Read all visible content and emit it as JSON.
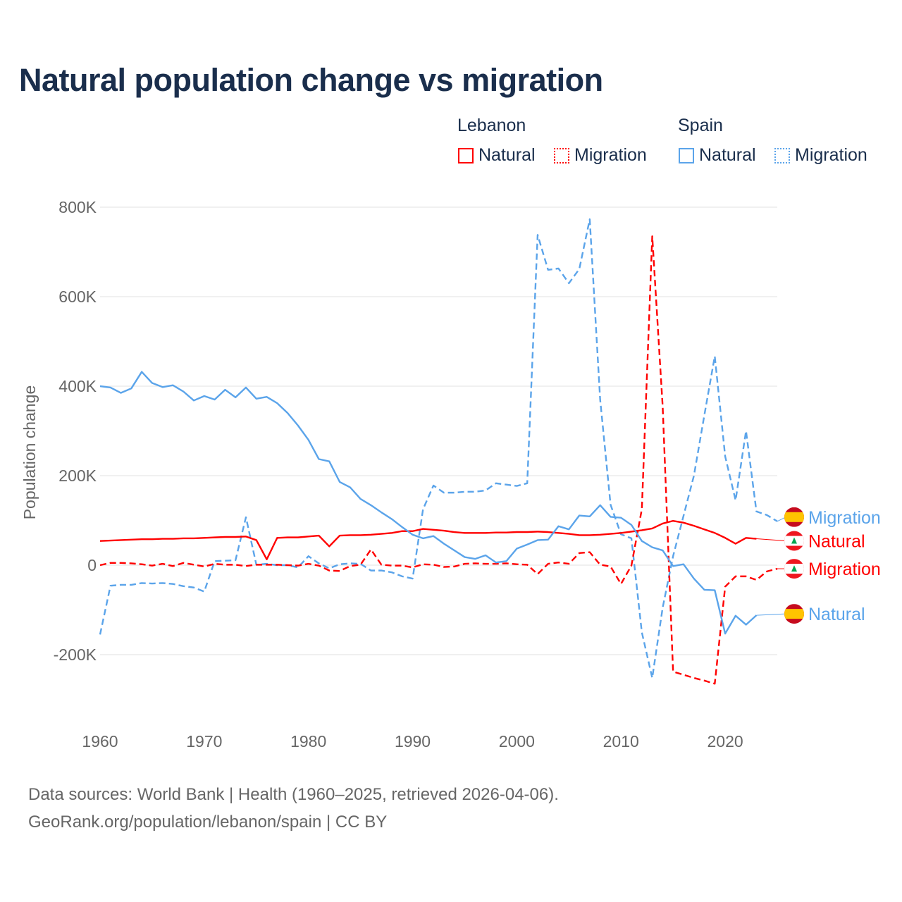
{
  "title": "Natural population change vs migration",
  "legend": {
    "groups": [
      {
        "name": "Lebanon",
        "items": [
          "Natural",
          "Migration"
        ]
      },
      {
        "name": "Spain",
        "items": [
          "Natural",
          "Migration"
        ]
      }
    ]
  },
  "colors": {
    "Lebanon": "#ff0000",
    "Spain": "#5ba4ea",
    "grid": "#e8e8e8",
    "axis_text": "#666666",
    "title": "#1a2e4c"
  },
  "footer": {
    "line1": "Data sources: World Bank | Health (1960–2025, retrieved 2026-04-06).",
    "line2": "GeoRank.org/population/lebanon/spain | CC BY"
  },
  "chart_data": {
    "type": "line",
    "title": "Natural population change vs migration",
    "xlabel": "",
    "ylabel": "Population change",
    "xlim": [
      1960,
      2025
    ],
    "ylim": [
      -200000,
      800000
    ],
    "xticks": [
      {
        "v": 1960,
        "label": "1960"
      },
      {
        "v": 1970,
        "label": "1970"
      },
      {
        "v": 1980,
        "label": "1980"
      },
      {
        "v": 1990,
        "label": "1990"
      },
      {
        "v": 2000,
        "label": "2000"
      },
      {
        "v": 2010,
        "label": "2010"
      },
      {
        "v": 2020,
        "label": "2020"
      }
    ],
    "yticks": [
      {
        "v": -200000,
        "label": "-200K"
      },
      {
        "v": 0,
        "label": "0"
      },
      {
        "v": 200000,
        "label": "200K"
      },
      {
        "v": 400000,
        "label": "400K"
      },
      {
        "v": 600000,
        "label": "600K"
      },
      {
        "v": 800000,
        "label": "800K"
      }
    ],
    "grid": true,
    "legend_position": "top-right",
    "unit_thousands": true,
    "series": [
      {
        "name": "Spain Migration",
        "country": "Spain",
        "kind": "Migration",
        "label": "Migration",
        "start": 1960,
        "values": [
          -155,
          -46,
          -44,
          -44,
          -40,
          -41,
          -40,
          -42,
          -47,
          -50,
          -59,
          9,
          10,
          11,
          107,
          1,
          3,
          0,
          0,
          -5,
          20,
          4,
          -7,
          2,
          4,
          3,
          -12,
          -12,
          -16,
          -25,
          -30,
          125,
          178,
          162,
          162,
          164,
          164,
          167,
          183,
          180,
          177,
          183,
          738,
          660,
          663,
          630,
          662,
          773,
          370,
          135,
          69,
          60,
          -150,
          -252,
          -95,
          20,
          110,
          200,
          335,
          467,
          243,
          145,
          300,
          120,
          112,
          98
        ]
      },
      {
        "name": "Lebanon Natural",
        "country": "Lebanon",
        "kind": "Natural",
        "label": "Natural",
        "start": 1960,
        "values": [
          54,
          55,
          56,
          57,
          58,
          58,
          59,
          59,
          60,
          60,
          61,
          62,
          63,
          63,
          64,
          56,
          13,
          61,
          62,
          62,
          64,
          66,
          42,
          66,
          67,
          67,
          68,
          70,
          72,
          76,
          76,
          81,
          79,
          77,
          74,
          72,
          72,
          72,
          73,
          73,
          74,
          74,
          75,
          74,
          72,
          70,
          67,
          67,
          68,
          70,
          72,
          75,
          78,
          82,
          93,
          99,
          95,
          88,
          80,
          72,
          61,
          48,
          61,
          59
        ]
      },
      {
        "name": "Lebanon Migration",
        "country": "Lebanon",
        "kind": "Migration",
        "label": "Migration",
        "start": 1960,
        "values": [
          0,
          5,
          5,
          4,
          2,
          -1,
          3,
          -2,
          5,
          1,
          -3,
          3,
          1,
          1,
          -2,
          1,
          1,
          1,
          0,
          -1,
          3,
          -1,
          -12,
          -13,
          -2,
          1,
          35,
          1,
          -1,
          -1,
          -5,
          2,
          1,
          -4,
          -3,
          3,
          4,
          3,
          3,
          4,
          2,
          1,
          -20,
          3,
          6,
          3,
          27,
          29,
          1,
          -3,
          -42,
          -1,
          125,
          735,
          355,
          -238,
          -245,
          -252,
          -258,
          -265,
          -48,
          -25,
          -25,
          -33,
          -14,
          -8
        ]
      },
      {
        "name": "Spain Natural",
        "country": "Spain",
        "kind": "Natural",
        "label": "Natural",
        "start": 1960,
        "values": [
          400,
          397,
          385,
          395,
          432,
          407,
          398,
          402,
          388,
          368,
          378,
          370,
          392,
          375,
          397,
          372,
          376,
          362,
          340,
          312,
          280,
          237,
          232,
          186,
          174,
          148,
          134,
          118,
          103,
          85,
          68,
          60,
          65,
          48,
          33,
          18,
          14,
          22,
          6,
          9,
          37,
          46,
          56,
          57,
          87,
          80,
          111,
          109,
          134,
          108,
          106,
          90,
          54,
          40,
          33,
          -2,
          2,
          -30,
          -55,
          -56,
          -153,
          -113,
          -133,
          -112
        ]
      }
    ]
  }
}
